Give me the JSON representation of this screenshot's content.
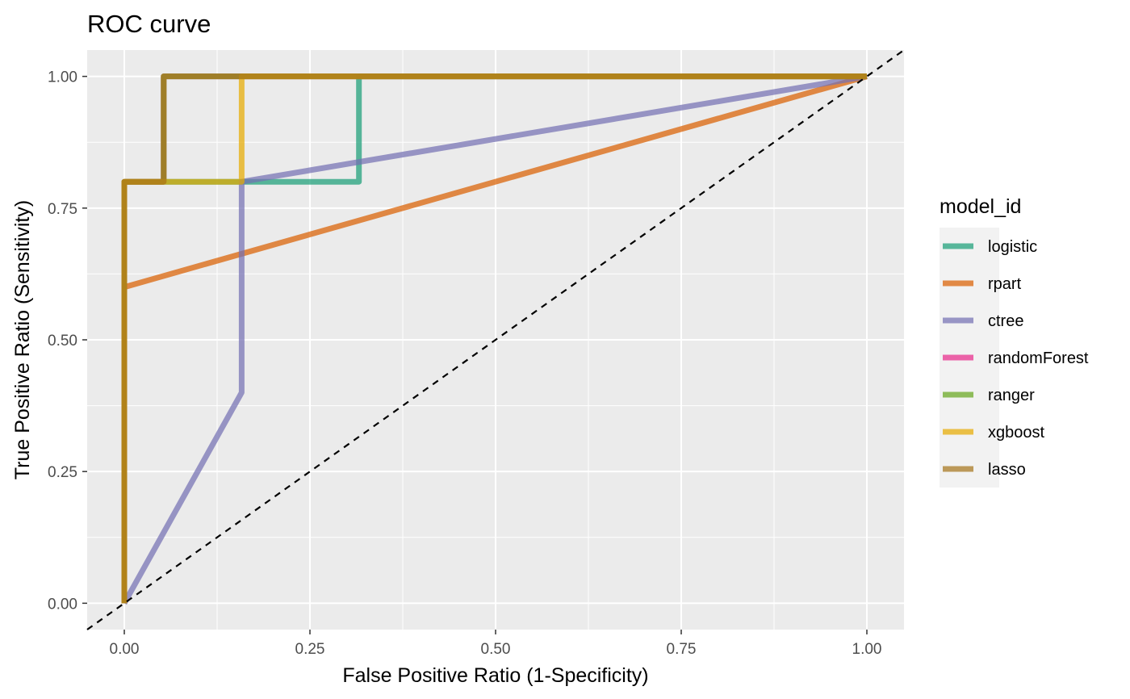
{
  "chart_data": {
    "type": "line",
    "title": "ROC curve",
    "xlabel": "False Positive Ratio (1-Specificity)",
    "ylabel": "True Positive Ratio (Sensitivity)",
    "xlim": [
      -0.05,
      1.05
    ],
    "ylim": [
      -0.05,
      1.05
    ],
    "x_ticks": [
      0,
      0.25,
      0.5,
      0.75,
      1
    ],
    "x_tick_labels": [
      "0.00",
      "0.25",
      "0.50",
      "0.75",
      "1.00"
    ],
    "y_ticks": [
      0,
      0.25,
      0.5,
      0.75,
      1
    ],
    "y_tick_labels": [
      "0.00",
      "0.25",
      "0.50",
      "0.75",
      "1.00"
    ],
    "grid": true,
    "legend": {
      "title": "model_id",
      "position": "right"
    },
    "reference_line": {
      "x": [
        -0.05,
        1.05
      ],
      "y": [
        -0.05,
        1.05
      ],
      "style": "dashed",
      "color": "#000000"
    },
    "series": [
      {
        "name": "logistic",
        "color": "#1B9E77",
        "x": [
          0,
          0,
          0.158,
          0.316,
          0.316,
          1
        ],
        "y": [
          0,
          0.8,
          0.8,
          0.8,
          1,
          1
        ]
      },
      {
        "name": "rpart",
        "color": "#D95F02",
        "x": [
          0,
          0,
          1
        ],
        "y": [
          0,
          0.6,
          1
        ]
      },
      {
        "name": "ctree",
        "color": "#7570B3",
        "x": [
          0,
          0.158,
          0.158,
          1
        ],
        "y": [
          0,
          0.4,
          0.8,
          1
        ]
      },
      {
        "name": "randomForest",
        "color": "#E7298A",
        "x": [
          0,
          0,
          0.053,
          0.053,
          1
        ],
        "y": [
          0,
          0.8,
          0.8,
          1,
          1
        ]
      },
      {
        "name": "ranger",
        "color": "#66A61E",
        "x": [
          0,
          0,
          0.053,
          0.053,
          1
        ],
        "y": [
          0,
          0.8,
          0.8,
          1,
          1
        ]
      },
      {
        "name": "xgboost",
        "color": "#E6AB02",
        "x": [
          0,
          0,
          0.158,
          0.158,
          1
        ],
        "y": [
          0,
          0.8,
          0.8,
          1,
          1
        ]
      },
      {
        "name": "lasso",
        "color": "#A6761D",
        "x": [
          0,
          0,
          0.053,
          0.053,
          1
        ],
        "y": [
          0,
          0.8,
          0.8,
          1,
          1
        ]
      }
    ]
  }
}
